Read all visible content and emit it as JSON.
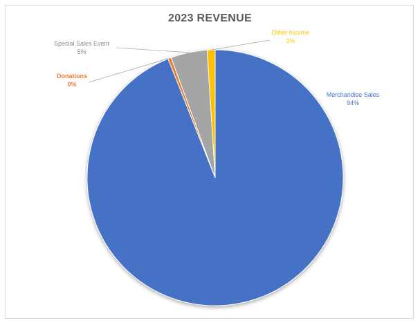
{
  "chart_data": {
    "type": "pie",
    "title": "2023 REVENUE",
    "slices": [
      {
        "name": "Merchandise Sales",
        "label": "94%",
        "value": 94,
        "color": "#4472c4"
      },
      {
        "name": "Donations",
        "label": "0%",
        "value": 0.4,
        "color": "#ed7d31"
      },
      {
        "name": "Special Sales Event",
        "label": "5%",
        "value": 4.6,
        "color": "#a5a5a5"
      },
      {
        "name": "Other Income",
        "label": "1%",
        "value": 1,
        "color": "#ffc000"
      }
    ],
    "legend": "none",
    "data_labels": "outside-with-leader-lines"
  }
}
